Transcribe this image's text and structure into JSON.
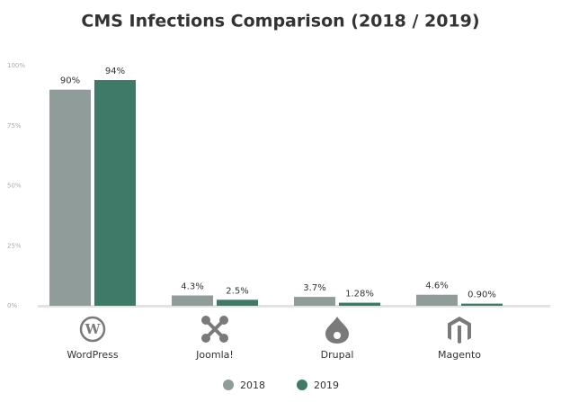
{
  "chart_data": {
    "type": "bar",
    "title": "CMS Infections Comparison (2018 / 2019)",
    "categories": [
      "WordPress",
      "Joomla!",
      "Drupal",
      "Magento"
    ],
    "series": [
      {
        "name": "2018",
        "color": "#8f9c9a",
        "values": [
          90,
          4.3,
          3.7,
          4.6
        ],
        "value_labels": [
          "90%",
          "4.3%",
          "3.7%",
          "4.6%"
        ]
      },
      {
        "name": "2019",
        "color": "#3f7a68",
        "values": [
          94,
          2.5,
          1.28,
          0.9
        ],
        "value_labels": [
          "94%",
          "2.5%",
          "1.28%",
          "0.90%"
        ]
      }
    ],
    "ylim": [
      0,
      100
    ],
    "yticks": [
      {
        "value": 0,
        "label": "0%"
      },
      {
        "value": 25,
        "label": "25%"
      },
      {
        "value": 50,
        "label": "50%"
      },
      {
        "value": 75,
        "label": "75%"
      },
      {
        "value": 100,
        "label": "100%"
      }
    ],
    "grid": false,
    "legend": "bottom"
  }
}
